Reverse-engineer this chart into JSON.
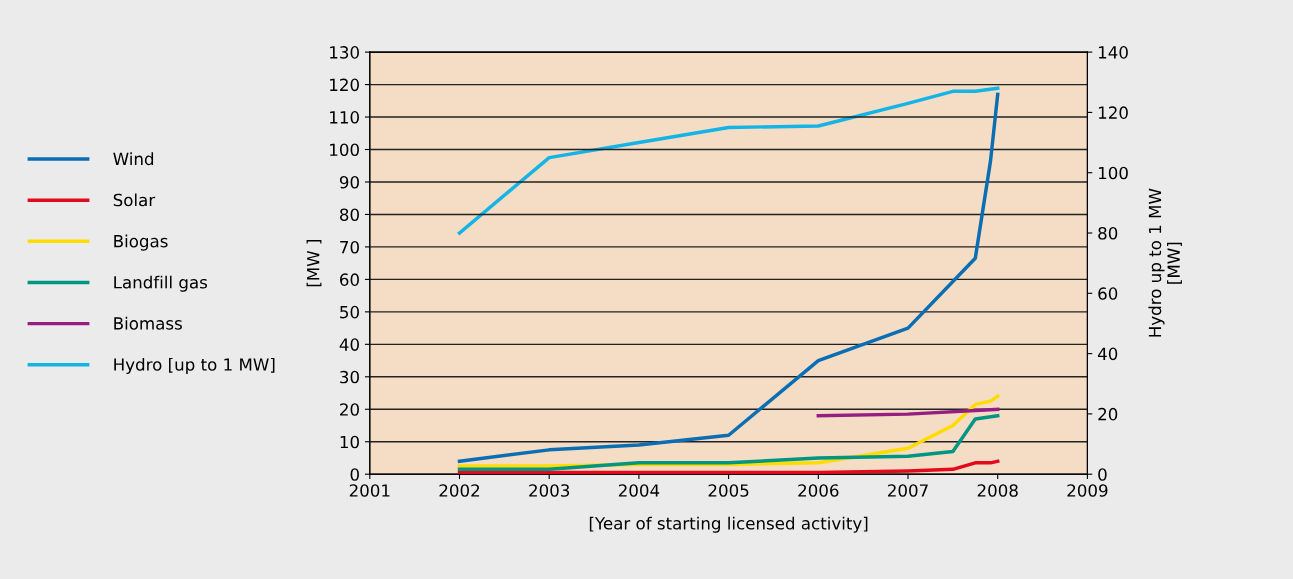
{
  "chart_data": {
    "type": "line",
    "xlabel": "[Year of starting licensed activity]",
    "ylabel": "[MW ]",
    "y2label": "Hydro up to 1 MW\n[MW]",
    "xlim": [
      2001,
      2009
    ],
    "xticks": [
      2001,
      2002,
      2003,
      2004,
      2005,
      2006,
      2007,
      2008,
      2009
    ],
    "ylim": [
      0,
      130
    ],
    "yticks": [
      0,
      10,
      20,
      30,
      40,
      50,
      60,
      70,
      80,
      90,
      100,
      110,
      120,
      130
    ],
    "y2lim": [
      0,
      140
    ],
    "y2ticks": [
      0,
      20,
      40,
      60,
      80,
      100,
      120,
      140
    ],
    "grid": "y",
    "legend": "left",
    "marker": "none",
    "line_style": "solid",
    "series": [
      {
        "name": "Wind",
        "color": "#0a6eb4",
        "x": [
          2002,
          2003,
          2004,
          2005,
          2006,
          2007,
          2007.75,
          2007.92,
          2008
        ],
        "values": [
          4,
          7.5,
          9,
          12,
          35,
          45,
          66.5,
          96.5,
          117
        ]
      },
      {
        "name": "Solar",
        "color": "#e30a1e",
        "x": [
          2002,
          2003,
          2004,
          2005,
          2006,
          2007,
          2007.5,
          2007.75,
          2007.92,
          2008
        ],
        "values": [
          0.5,
          0.5,
          0.5,
          0.5,
          0.5,
          1,
          1.5,
          3.5,
          3.5,
          4
        ]
      },
      {
        "name": "Biogas",
        "color": "#ffdc00",
        "x": [
          2002,
          2003,
          2004,
          2005,
          2006,
          2007,
          2007.5,
          2007.75,
          2007.92,
          2008
        ],
        "values": [
          2.5,
          2.5,
          3,
          3,
          3.5,
          8,
          15,
          21.5,
          22.5,
          24
        ]
      },
      {
        "name": "Landfill gas",
        "color": "#009682",
        "x": [
          2002,
          2003,
          2004,
          2005,
          2006,
          2007,
          2007.5,
          2007.75,
          2008
        ],
        "values": [
          1.5,
          1.5,
          3.5,
          3.5,
          5,
          5.5,
          7,
          17,
          18
        ]
      },
      {
        "name": "Biomass",
        "color": "#961e82",
        "x": [
          2006,
          2007,
          2008
        ],
        "values": [
          18,
          18.5,
          20
        ]
      },
      {
        "name": "Hydro [up to 1 MW]",
        "color": "#14b4e6",
        "axis": "y2",
        "x": [
          2002,
          2003,
          2004,
          2005,
          2006,
          2007,
          2007.5,
          2007.75,
          2008
        ],
        "values": [
          80,
          105,
          110,
          115,
          115.5,
          123,
          127,
          127,
          128
        ]
      }
    ]
  }
}
